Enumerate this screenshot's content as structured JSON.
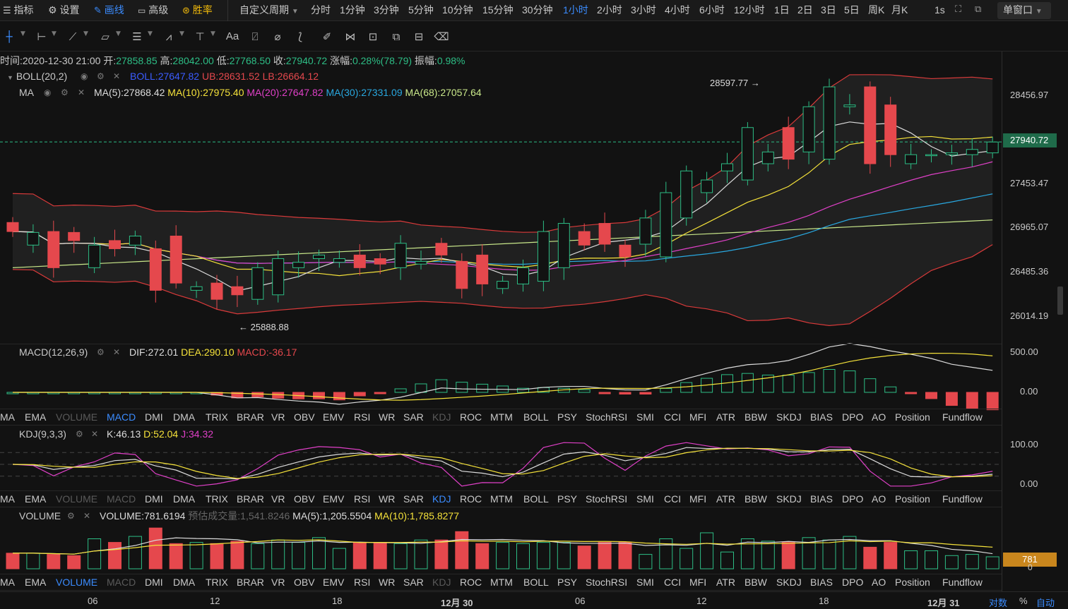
{
  "toolbar": {
    "indicators": "指标",
    "settings": "设置",
    "draw": "画线",
    "advanced": "高级",
    "winrate": "胜率",
    "custom_period": "自定义周期",
    "periods": [
      "分时",
      "1分钟",
      "3分钟",
      "5分钟",
      "10分钟",
      "15分钟",
      "30分钟",
      "1小时",
      "2小时",
      "3小时",
      "4小时",
      "6小时",
      "12小时",
      "1日",
      "2日",
      "3日",
      "5日",
      "周K",
      "月K"
    ],
    "active_period": "1小时",
    "refresh": "1s",
    "window_mode": "单窗口"
  },
  "ohlc_bar": {
    "time_label": "时间:",
    "time": "2020-12-30 21:00",
    "open_label": "开:",
    "open": "27858.85",
    "high_label": "高:",
    "high": "28042.00",
    "low_label": "低:",
    "low": "27768.50",
    "close_label": "收:",
    "close": "27940.72",
    "change_label": "涨幅:",
    "change": "0.28%(78.79)",
    "amp_label": "振幅:",
    "amp": "0.98%"
  },
  "boll_legend": {
    "name": "BOLL(20,2)",
    "mid": "BOLL:27647.82",
    "ub": "UB:28631.52",
    "lb": "LB:26664.12"
  },
  "ma_legend": {
    "name": "MA",
    "ma5": "MA(5):27868.42",
    "ma10": "MA(10):27975.40",
    "ma20": "MA(20):27647.82",
    "ma30": "MA(30):27331.09",
    "ma68": "MA(68):27057.64"
  },
  "annotations": {
    "high_mark": "28597.77 →",
    "low_mark": "← 25888.88"
  },
  "price_axis": [
    "28456.97",
    "27453.47",
    "26965.07",
    "26485.36",
    "26014.19"
  ],
  "current_price": "27940.72",
  "macd_legend": {
    "name": "MACD(12,26,9)",
    "dif": "DIF:272.01",
    "dea": "DEA:290.10",
    "macd": "MACD:-36.17"
  },
  "macd_axis": [
    "500.00",
    "0.00"
  ],
  "kdj_legend": {
    "name": "KDJ(9,3,3)",
    "k": "K:46.13",
    "d": "D:52.04",
    "j": "J:34.32"
  },
  "kdj_axis": [
    "100.00",
    "0.00"
  ],
  "volume_legend": {
    "name": "VOLUME",
    "vol": "VOLUME:781.6194",
    "est": "预估成交量:1,541.8246",
    "ma5": "MA(5):1,205.5504",
    "ma10": "MA(10):1,785.8277"
  },
  "volume_axis": {
    "tag": "781",
    "zero": "0"
  },
  "indicator_tabs": [
    "MA",
    "EMA",
    "VOLUME",
    "MACD",
    "DMI",
    "DMA",
    "TRIX",
    "BRAR",
    "VR",
    "OBV",
    "EMV",
    "RSI",
    "WR",
    "SAR",
    "KDJ",
    "ROC",
    "MTM",
    "BOLL",
    "PSY",
    "StochRSI",
    "SMI",
    "CCI",
    "MFI",
    "ATR",
    "BBW",
    "SKDJ",
    "BIAS",
    "DPO",
    "AO",
    "Position",
    "Fundflow"
  ],
  "time_axis": [
    "06",
    "12",
    "18",
    "12月 30",
    "06",
    "12",
    "18",
    "12月 31"
  ],
  "bottom_controls": {
    "log": "对数",
    "pct": "%",
    "auto": "自动"
  },
  "colors": {
    "up": "#2dbd85",
    "down": "#e5484d",
    "accent": "#3b8cff",
    "gold": "#f0b90b"
  },
  "chart_data": {
    "type": "candlestick",
    "interval": "1小时",
    "opens": [
      27050,
      26800,
      26950,
      26940,
      26550,
      26850,
      26800,
      26760,
      26900,
      26300,
      26380,
      26340,
      26200,
      26250,
      26550,
      26650,
      26610,
      26690,
      26650,
      26550,
      26590,
      26820,
      26620,
      26690,
      26320,
      26370,
      26400,
      26550,
      26950,
      27040,
      26800,
      26810,
      26670,
      27100,
      27380,
      27620,
      27520,
      27700,
      28100,
      27830,
      27750,
      28330,
      28550,
      28350,
      27700,
      27800,
      27800,
      27800,
      27820
    ],
    "closes": [
      26950,
      26940,
      26550,
      26850,
      26800,
      26760,
      26900,
      26300,
      26380,
      26340,
      26200,
      26250,
      26550,
      26650,
      26610,
      26690,
      26650,
      26550,
      26590,
      26820,
      26620,
      26690,
      26320,
      26370,
      26400,
      26550,
      26950,
      27040,
      26800,
      26810,
      26670,
      27100,
      27380,
      27620,
      27520,
      27700,
      28100,
      27830,
      27750,
      28330,
      28550,
      28350,
      27700,
      27800,
      27800,
      27800,
      27820,
      27858,
      27940
    ]
  }
}
